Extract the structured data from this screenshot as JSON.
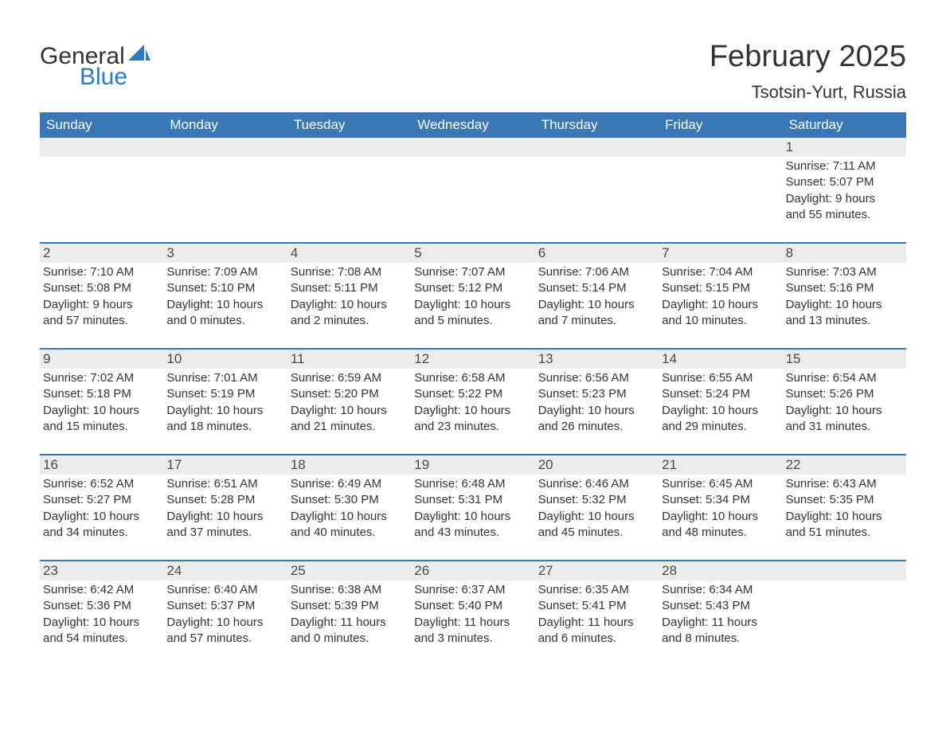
{
  "brand": {
    "word1": "General",
    "word2": "Blue",
    "word1_color": "#333333",
    "word2_color": "#2f79bd",
    "sail_color": "#2f79bd"
  },
  "title": {
    "month": "February 2025",
    "location": "Tsotsin-Yurt, Russia"
  },
  "style": {
    "header_bg": "#3a78b5",
    "header_text_color": "#ffffff",
    "daynum_bg": "#ececec",
    "row_border_color": "#3a78b5",
    "body_text_color": "#333333",
    "page_bg": "#ffffff",
    "title_fontsize": 38,
    "location_fontsize": 22,
    "weekday_fontsize": 17,
    "daynum_fontsize": 17,
    "body_fontsize": 15
  },
  "weekdays": [
    "Sunday",
    "Monday",
    "Tuesday",
    "Wednesday",
    "Thursday",
    "Friday",
    "Saturday"
  ],
  "weeks": [
    [
      null,
      null,
      null,
      null,
      null,
      null,
      {
        "n": "1",
        "sunrise": "7:11 AM",
        "sunset": "5:07 PM",
        "dlh": "9",
        "dlm": "55"
      }
    ],
    [
      {
        "n": "2",
        "sunrise": "7:10 AM",
        "sunset": "5:08 PM",
        "dlh": "9",
        "dlm": "57"
      },
      {
        "n": "3",
        "sunrise": "7:09 AM",
        "sunset": "5:10 PM",
        "dlh": "10",
        "dlm": "0"
      },
      {
        "n": "4",
        "sunrise": "7:08 AM",
        "sunset": "5:11 PM",
        "dlh": "10",
        "dlm": "2"
      },
      {
        "n": "5",
        "sunrise": "7:07 AM",
        "sunset": "5:12 PM",
        "dlh": "10",
        "dlm": "5"
      },
      {
        "n": "6",
        "sunrise": "7:06 AM",
        "sunset": "5:14 PM",
        "dlh": "10",
        "dlm": "7"
      },
      {
        "n": "7",
        "sunrise": "7:04 AM",
        "sunset": "5:15 PM",
        "dlh": "10",
        "dlm": "10"
      },
      {
        "n": "8",
        "sunrise": "7:03 AM",
        "sunset": "5:16 PM",
        "dlh": "10",
        "dlm": "13"
      }
    ],
    [
      {
        "n": "9",
        "sunrise": "7:02 AM",
        "sunset": "5:18 PM",
        "dlh": "10",
        "dlm": "15"
      },
      {
        "n": "10",
        "sunrise": "7:01 AM",
        "sunset": "5:19 PM",
        "dlh": "10",
        "dlm": "18"
      },
      {
        "n": "11",
        "sunrise": "6:59 AM",
        "sunset": "5:20 PM",
        "dlh": "10",
        "dlm": "21"
      },
      {
        "n": "12",
        "sunrise": "6:58 AM",
        "sunset": "5:22 PM",
        "dlh": "10",
        "dlm": "23"
      },
      {
        "n": "13",
        "sunrise": "6:56 AM",
        "sunset": "5:23 PM",
        "dlh": "10",
        "dlm": "26"
      },
      {
        "n": "14",
        "sunrise": "6:55 AM",
        "sunset": "5:24 PM",
        "dlh": "10",
        "dlm": "29"
      },
      {
        "n": "15",
        "sunrise": "6:54 AM",
        "sunset": "5:26 PM",
        "dlh": "10",
        "dlm": "31"
      }
    ],
    [
      {
        "n": "16",
        "sunrise": "6:52 AM",
        "sunset": "5:27 PM",
        "dlh": "10",
        "dlm": "34"
      },
      {
        "n": "17",
        "sunrise": "6:51 AM",
        "sunset": "5:28 PM",
        "dlh": "10",
        "dlm": "37"
      },
      {
        "n": "18",
        "sunrise": "6:49 AM",
        "sunset": "5:30 PM",
        "dlh": "10",
        "dlm": "40"
      },
      {
        "n": "19",
        "sunrise": "6:48 AM",
        "sunset": "5:31 PM",
        "dlh": "10",
        "dlm": "43"
      },
      {
        "n": "20",
        "sunrise": "6:46 AM",
        "sunset": "5:32 PM",
        "dlh": "10",
        "dlm": "45"
      },
      {
        "n": "21",
        "sunrise": "6:45 AM",
        "sunset": "5:34 PM",
        "dlh": "10",
        "dlm": "48"
      },
      {
        "n": "22",
        "sunrise": "6:43 AM",
        "sunset": "5:35 PM",
        "dlh": "10",
        "dlm": "51"
      }
    ],
    [
      {
        "n": "23",
        "sunrise": "6:42 AM",
        "sunset": "5:36 PM",
        "dlh": "10",
        "dlm": "54"
      },
      {
        "n": "24",
        "sunrise": "6:40 AM",
        "sunset": "5:37 PM",
        "dlh": "10",
        "dlm": "57"
      },
      {
        "n": "25",
        "sunrise": "6:38 AM",
        "sunset": "5:39 PM",
        "dlh": "11",
        "dlm": "0"
      },
      {
        "n": "26",
        "sunrise": "6:37 AM",
        "sunset": "5:40 PM",
        "dlh": "11",
        "dlm": "3"
      },
      {
        "n": "27",
        "sunrise": "6:35 AM",
        "sunset": "5:41 PM",
        "dlh": "11",
        "dlm": "6"
      },
      {
        "n": "28",
        "sunrise": "6:34 AM",
        "sunset": "5:43 PM",
        "dlh": "11",
        "dlm": "8"
      },
      null
    ]
  ],
  "labels": {
    "sunrise_prefix": "Sunrise: ",
    "sunset_prefix": "Sunset: ",
    "daylight_prefix": "Daylight: ",
    "hours_word": " hours",
    "and_word": "and ",
    "minutes_word": " minutes."
  }
}
